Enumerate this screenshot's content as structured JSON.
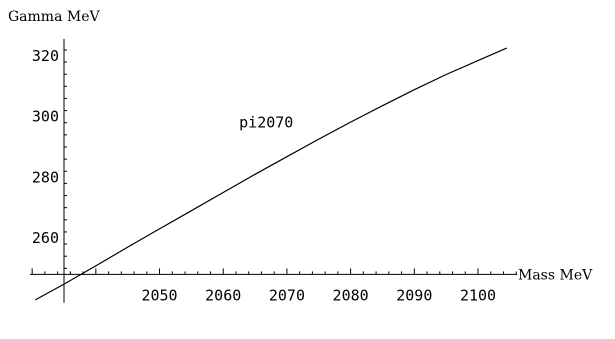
{
  "chart_data": {
    "type": "line",
    "xlabel": "Mass MeV",
    "ylabel": "Gamma MeV",
    "xlim": [
      2030,
      2106
    ],
    "ylim": [
      242,
      325
    ],
    "x_axis_crosses_y": 248,
    "y_axis_crosses_x": 2035,
    "x_major_ticks": [
      2050,
      2060,
      2070,
      2080,
      2090,
      2100
    ],
    "x_tick_labels": [
      "2050",
      "2060",
      "2070",
      "2080",
      "2090",
      "2100"
    ],
    "y_major_ticks": [
      260,
      280,
      300,
      320
    ],
    "y_tick_labels": [
      "260",
      "280",
      "300",
      "320"
    ],
    "minor_ticks_per_major": 5,
    "series": [
      {
        "x": [
          2030.5,
          2035,
          2040,
          2045,
          2050,
          2055,
          2060,
          2065,
          2070,
          2075,
          2080,
          2085,
          2090,
          2095,
          2100,
          2104.5
        ],
        "y": [
          239.6,
          244.8,
          250.8,
          257.0,
          263.0,
          269.0,
          275.0,
          281.0,
          286.8,
          292.6,
          298.2,
          303.6,
          308.9,
          313.9,
          318.5,
          322.6
        ],
        "color": "#000000"
      }
    ],
    "annotations": [
      {
        "text": "pi2070",
        "x": 2062.5,
        "y": 296.5
      }
    ],
    "grid": false
  }
}
